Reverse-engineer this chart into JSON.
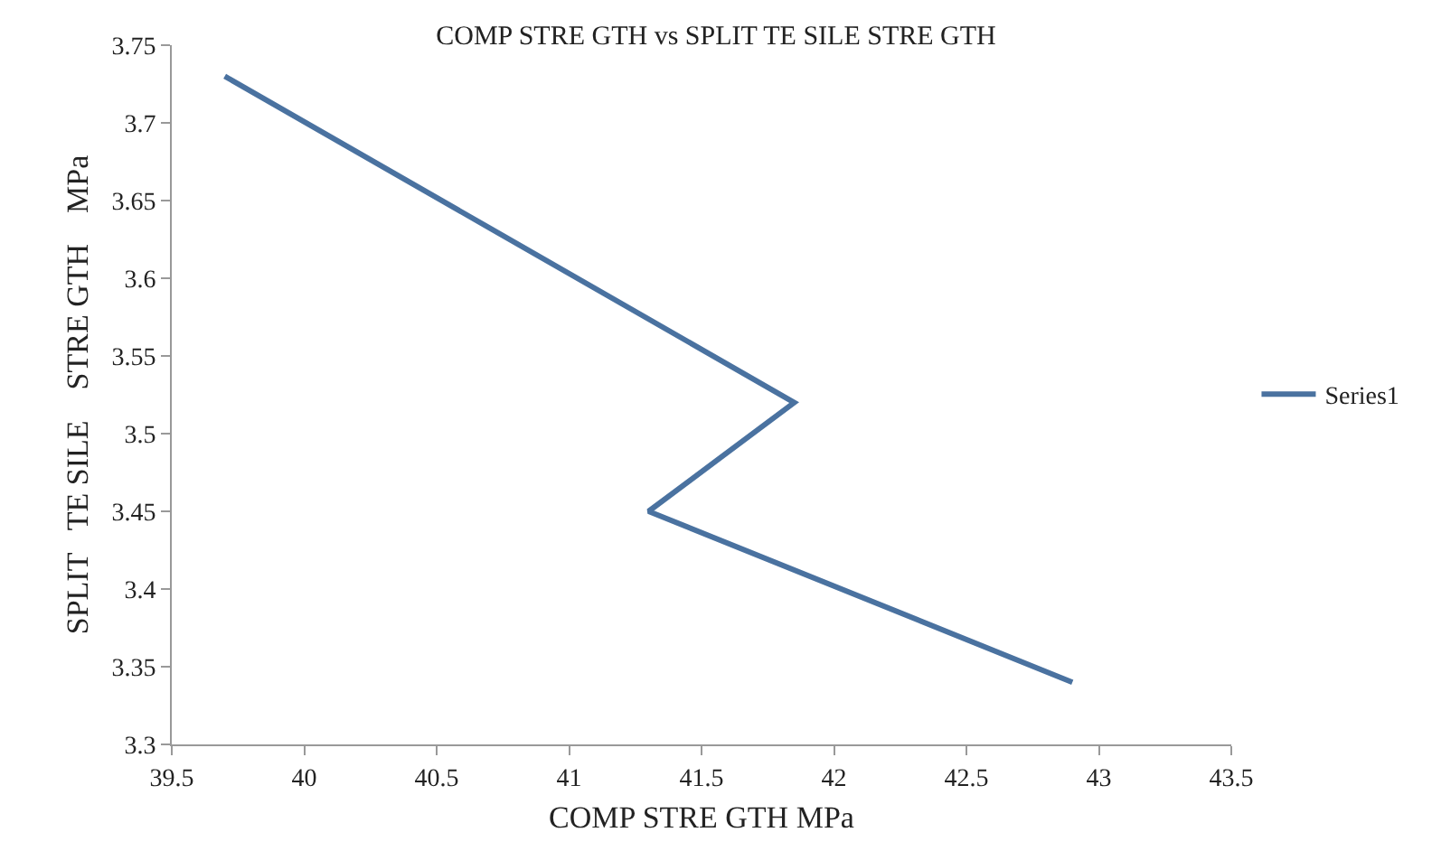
{
  "chart_data": {
    "type": "line",
    "title": "COMP STRE GTH vs SPLIT TE SILE STRE GTH",
    "xlabel": "COMP STRE GTH MPa",
    "ylabel": "SPLIT   TE SILE    STRE GTH    MPa",
    "x": [
      39.7,
      41.85,
      41.3,
      42.9
    ],
    "series": [
      {
        "name": "Series1",
        "color": "#4a72a0",
        "values": [
          3.73,
          3.52,
          3.45,
          3.34
        ]
      }
    ],
    "xlim": [
      39.5,
      43.5
    ],
    "xticks": [
      39.5,
      40,
      40.5,
      41,
      41.5,
      42,
      42.5,
      43,
      43.5
    ],
    "ylim": [
      3.3,
      3.75
    ],
    "yticks": [
      3.3,
      3.35,
      3.4,
      3.45,
      3.5,
      3.55,
      3.6,
      3.65,
      3.7,
      3.75
    ],
    "grid": false,
    "legend": "right",
    "marker": "none",
    "line_style": "solid"
  }
}
